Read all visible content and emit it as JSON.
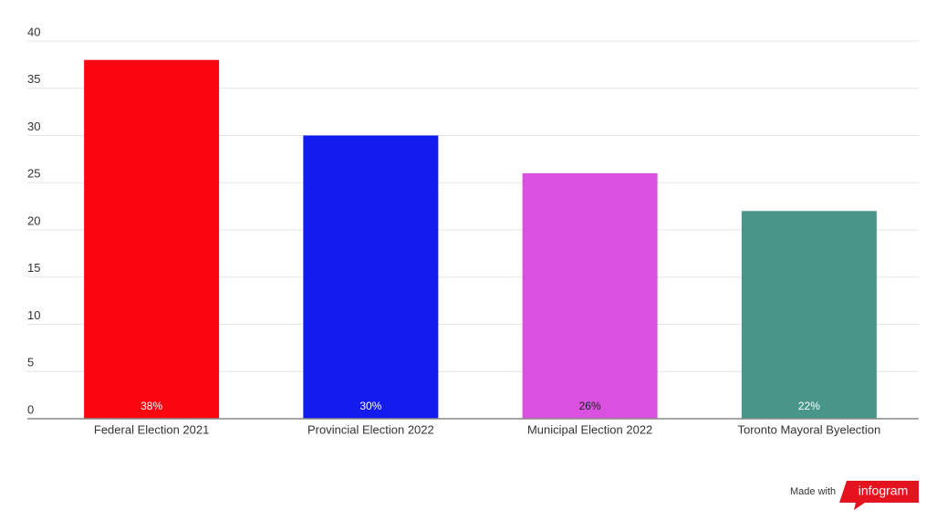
{
  "chart_data": {
    "type": "bar",
    "categories": [
      "Federal Election 2021",
      "Provincial Election 2022",
      "Municipal Election 2022",
      "Toronto Mayoral Byelection"
    ],
    "values": [
      38,
      30,
      26,
      22
    ],
    "value_labels": [
      "38%",
      "30%",
      "26%",
      "22%"
    ],
    "colors": [
      "#fb0511",
      "#141bef",
      "#d951de",
      "#48968a"
    ],
    "ylim": [
      0,
      40
    ],
    "yticks": [
      0,
      5,
      10,
      15,
      20,
      25,
      30,
      35,
      40
    ],
    "grid": true
  },
  "footer": {
    "made_with": "Made with",
    "brand": "infogram"
  }
}
